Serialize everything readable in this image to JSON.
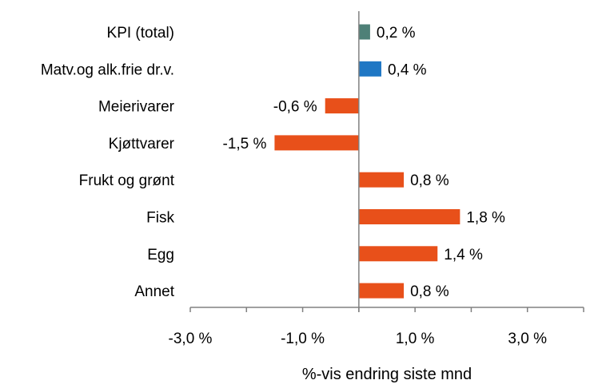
{
  "chart_data": {
    "type": "bar",
    "orientation": "horizontal",
    "categories": [
      "KPI (total)",
      "Matv.og alk.frie dr.v.",
      "Meierivarer",
      "Kjøttvarer",
      "Frukt og grønt",
      "Fisk",
      "Egg",
      "Annet"
    ],
    "values": [
      0.2,
      0.4,
      -0.6,
      -1.5,
      0.8,
      1.8,
      1.4,
      0.8
    ],
    "value_labels": [
      "0,2 %",
      "0,4 %",
      "-0,6 %",
      "-1,5 %",
      "0,8 %",
      "1,8 %",
      "1,4 %",
      "0,8 %"
    ],
    "bar_colors": [
      "#4e8077",
      "#1f77c4",
      "#e8501a",
      "#e8501a",
      "#e8501a",
      "#e8501a",
      "#e8501a",
      "#e8501a"
    ],
    "xlabel": "%-vis endring siste mnd",
    "xlim": [
      -3.0,
      4.0
    ],
    "xticks": [
      -3.0,
      -1.0,
      1.0,
      3.0
    ],
    "xtick_labels": [
      "-3,0 %",
      "-1,0 %",
      "1,0 %",
      "3,0 %"
    ],
    "grid": false,
    "legend": "none"
  }
}
